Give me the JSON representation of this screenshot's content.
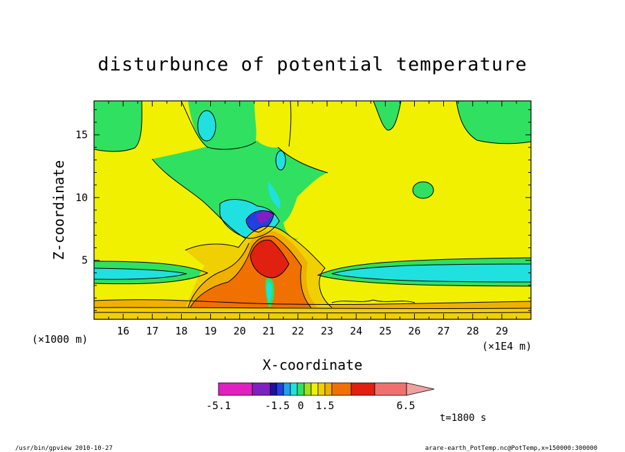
{
  "chart_data": {
    "type": "heatmap",
    "title": "disturbunce of potential temperature",
    "xlabel": "X-coordinate",
    "ylabel": "Z-coordinate",
    "x_unit_left": "(×1000 m)",
    "x_unit_right": "(×1E4 m)",
    "x_ticks": [
      "16",
      "17",
      "18",
      "19",
      "20",
      "21",
      "22",
      "23",
      "24",
      "25",
      "26",
      "27",
      "28",
      "29"
    ],
    "y_ticks": [
      "5",
      "10",
      "15"
    ],
    "xlim": [
      15.0,
      30.0
    ],
    "ylim": [
      0.3,
      17.7
    ],
    "colorbar": {
      "labels": [
        "-5.1",
        "-1.5",
        "0",
        "1.5",
        "6.5"
      ],
      "colors": [
        "#e020c0",
        "#8020c0",
        "#2010a0",
        "#2040e0",
        "#20a0f0",
        "#20e0e0",
        "#30e060",
        "#a0e020",
        "#f0f000",
        "#f0d000",
        "#f0b000",
        "#f07000",
        "#e02010",
        "#f07070",
        "#f0a0a0"
      ]
    },
    "time_label": "t=1800 s",
    "footer_left": "/usr/bin/gpview   2010-10-27",
    "footer_right": "arare-earth_PotTemp.nc@PotTemp,x=150000:300000"
  }
}
